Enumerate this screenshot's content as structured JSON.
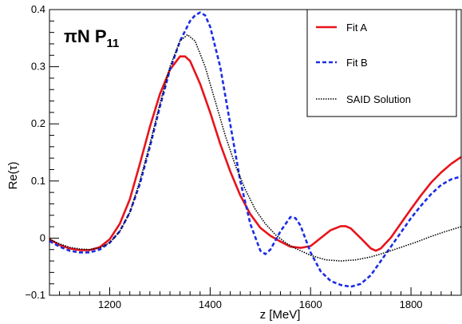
{
  "chart_data": {
    "type": "line",
    "title": "",
    "xlabel": "z [MeV]",
    "ylabel": "Re(τ)",
    "xlim": [
      1080,
      1900
    ],
    "ylim": [
      -0.1,
      0.4
    ],
    "x_ticks": [
      1200,
      1400,
      1600,
      1800
    ],
    "x_tick_labels": [
      "1200",
      "1400",
      "1600",
      "1800"
    ],
    "y_ticks": [
      -0.1,
      0,
      0.1,
      0.2,
      0.3,
      0.4
    ],
    "y_tick_labels": [
      "−0.1",
      "0",
      "0.1",
      "0.2",
      "0.3",
      "0.4"
    ],
    "grid": false,
    "legend_position": "top-right",
    "annotation": {
      "prefix": "πN P",
      "subscript": "11"
    },
    "series": [
      {
        "name": "Fit A",
        "color": "#e8131b",
        "style": "solid",
        "x": [
          1080,
          1100,
          1120,
          1140,
          1160,
          1180,
          1200,
          1220,
          1240,
          1260,
          1280,
          1300,
          1320,
          1340,
          1350,
          1360,
          1380,
          1400,
          1420,
          1440,
          1460,
          1480,
          1500,
          1520,
          1540,
          1560,
          1580,
          1600,
          1620,
          1640,
          1660,
          1670,
          1680,
          1700,
          1720,
          1730,
          1740,
          1760,
          1780,
          1800,
          1820,
          1840,
          1860,
          1880,
          1900
        ],
        "y": [
          -0.002,
          -0.012,
          -0.018,
          -0.021,
          -0.021,
          -0.016,
          -0.002,
          0.025,
          0.068,
          0.13,
          0.195,
          0.252,
          0.295,
          0.318,
          0.318,
          0.31,
          0.27,
          0.22,
          0.165,
          0.117,
          0.075,
          0.042,
          0.018,
          0.004,
          -0.006,
          -0.015,
          -0.017,
          -0.014,
          0.0,
          0.014,
          0.021,
          0.021,
          0.017,
          0.0,
          -0.018,
          -0.022,
          -0.018,
          0.001,
          0.026,
          0.051,
          0.075,
          0.097,
          0.115,
          0.13,
          0.142
        ]
      },
      {
        "name": "Fit B",
        "color": "#1a2de6",
        "style": "dashed",
        "x": [
          1080,
          1100,
          1120,
          1140,
          1160,
          1180,
          1200,
          1220,
          1240,
          1260,
          1280,
          1300,
          1320,
          1340,
          1360,
          1370,
          1380,
          1390,
          1400,
          1420,
          1440,
          1460,
          1480,
          1500,
          1510,
          1520,
          1540,
          1560,
          1570,
          1580,
          1600,
          1620,
          1640,
          1660,
          1680,
          1700,
          1720,
          1740,
          1760,
          1780,
          1800,
          1820,
          1840,
          1860,
          1880,
          1900
        ],
        "y": [
          -0.005,
          -0.015,
          -0.022,
          -0.025,
          -0.025,
          -0.02,
          -0.008,
          0.012,
          0.045,
          0.095,
          0.16,
          0.23,
          0.295,
          0.345,
          0.38,
          0.39,
          0.395,
          0.39,
          0.37,
          0.3,
          0.2,
          0.1,
          0.025,
          -0.022,
          -0.028,
          -0.02,
          0.012,
          0.037,
          0.035,
          0.022,
          -0.025,
          -0.058,
          -0.075,
          -0.082,
          -0.085,
          -0.08,
          -0.065,
          -0.04,
          -0.015,
          0.01,
          0.035,
          0.057,
          0.077,
          0.093,
          0.103,
          0.108
        ]
      },
      {
        "name": "SAID Solution",
        "color": "#000000",
        "style": "dotted",
        "x": [
          1080,
          1100,
          1120,
          1140,
          1160,
          1180,
          1200,
          1220,
          1240,
          1260,
          1280,
          1300,
          1320,
          1340,
          1355,
          1370,
          1390,
          1410,
          1430,
          1450,
          1470,
          1490,
          1510,
          1530,
          1550,
          1570,
          1600,
          1630,
          1660,
          1690,
          1720,
          1750,
          1780,
          1810,
          1840,
          1870,
          1900
        ],
        "y": [
          -0.002,
          -0.01,
          -0.016,
          -0.019,
          -0.02,
          -0.017,
          -0.008,
          0.012,
          0.045,
          0.1,
          0.165,
          0.235,
          0.3,
          0.345,
          0.356,
          0.345,
          0.3,
          0.24,
          0.18,
          0.128,
          0.085,
          0.05,
          0.025,
          0.006,
          -0.008,
          -0.018,
          -0.03,
          -0.038,
          -0.04,
          -0.038,
          -0.033,
          -0.025,
          -0.016,
          -0.007,
          0.003,
          0.012,
          0.02
        ]
      }
    ]
  }
}
